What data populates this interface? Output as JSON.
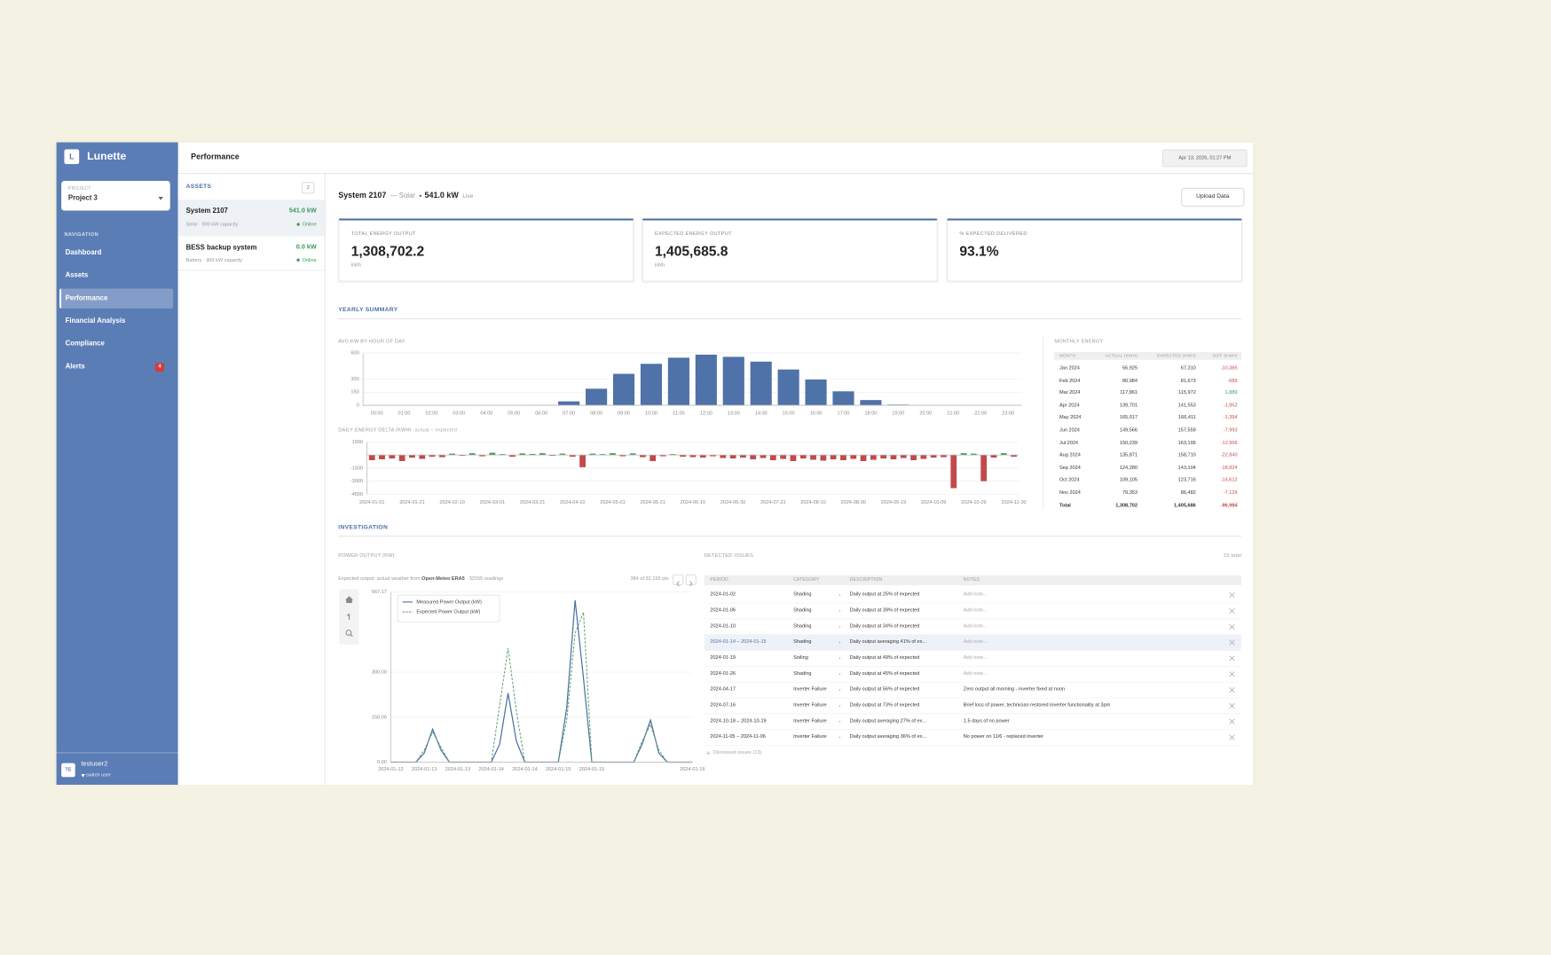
{
  "app": {
    "logo": "L",
    "name": "Lunette"
  },
  "sidebar": {
    "project_label": "PROJECT",
    "project": "Project 3",
    "nav_label": "NAVIGATION",
    "nav": [
      "Dashboard",
      "Assets",
      "Performance",
      "Financial Analysis",
      "Compliance",
      "Alerts"
    ],
    "alerts_badge": "4",
    "user_initials": "TE",
    "user": "testuser2",
    "switch_user": "switch user"
  },
  "header": {
    "title": "Performance",
    "timestamp": "Apr 13, 2026, 01:27 PM"
  },
  "assets": {
    "title": "ASSETS",
    "count": "2",
    "items": [
      {
        "name": "System 2107",
        "power": "541.0 kW",
        "detail": "Solar · 900 kW capacity",
        "status": "Online"
      },
      {
        "name": "BESS backup system",
        "power": "0.0 kW",
        "detail": "Battery · 900 kW capacity",
        "status": "Online"
      }
    ]
  },
  "system": {
    "name": "System 2107",
    "type": "— Solar",
    "power": "541.0 kW",
    "live": "Live",
    "upload": "Upload Data"
  },
  "kpis": [
    {
      "label": "TOTAL ENERGY OUTPUT",
      "value": "1,308,702.2",
      "unit": "kWh"
    },
    {
      "label": "EXPECTED ENERGY OUTPUT",
      "value": "1,405,685.8",
      "unit": "kWh"
    },
    {
      "label": "% EXPECTED DELIVERED",
      "value": "93.1%"
    }
  ],
  "sections": {
    "yearly": "YEARLY SUMMARY",
    "investigation": "INVESTIGATION"
  },
  "monthly": {
    "title": "MONTHLY ENERGY",
    "columns": [
      "MONTH",
      "ACTUAL (KWH)",
      "EXPECTED (KWH)",
      "DIFF (KWH)"
    ],
    "rows": [
      [
        "Jan 2024",
        "56,925",
        "67,310",
        "-10,385"
      ],
      [
        "Feb 2024",
        "80,984",
        "81,673",
        "-689"
      ],
      [
        "Mar 2024",
        "117,861",
        "115,972",
        "1,889"
      ],
      [
        "Apr 2024",
        "139,701",
        "141,553",
        "-1,852"
      ],
      [
        "May 2024",
        "165,017",
        "166,411",
        "-1,394"
      ],
      [
        "Jun 2024",
        "149,566",
        "157,559",
        "-7,993"
      ],
      [
        "Jul 2024",
        "150,239",
        "163,195",
        "-12,956"
      ],
      [
        "Aug 2024",
        "135,871",
        "158,710",
        "-22,840"
      ],
      [
        "Sep 2024",
        "124,280",
        "143,104",
        "-18,824"
      ],
      [
        "Oct 2024",
        "109,105",
        "123,716",
        "-14,612"
      ],
      [
        "Nov 2024",
        "79,353",
        "86,482",
        "-7,129"
      ],
      [
        "Total",
        "1,308,702",
        "1,405,686",
        "-96,984"
      ]
    ]
  },
  "power_panel": {
    "note": "Expected output: actual weather from",
    "source": "Open-Meteo ERA5",
    "readings": "· 32155 readings",
    "points": "384 of 32,155 pts"
  },
  "issues": {
    "title": "DETECTED ISSUES",
    "total": "23 total",
    "columns": [
      "PERIOD",
      "CATEGORY",
      "DESCRIPTION",
      "NOTES"
    ],
    "rows": [
      [
        "2024-01-02",
        "Shading",
        "Daily output at 25% of expected",
        "Add note..."
      ],
      [
        "2024-01-06",
        "Shading",
        "Daily output at 39% of expected",
        "Add note..."
      ],
      [
        "2024-01-10",
        "Shading",
        "Daily output at 34% of expected",
        "Add note..."
      ],
      [
        "2024-01-14 – 2024-01-15",
        "Shading",
        "Daily output averaging 41% of ex...",
        "Add note..."
      ],
      [
        "2024-01-19",
        "Soiling",
        "Daily output at 49% of expected",
        "Add note..."
      ],
      [
        "2024-01-26",
        "Shading",
        "Daily output at 45% of expected",
        "Add note..."
      ],
      [
        "2024-04-17",
        "Inverter Failure",
        "Daily output at 56% of expected",
        "Zero output all morning - inverter fixed at noon"
      ],
      [
        "2024-07-16",
        "Inverter Failure",
        "Daily output at 73% of expected",
        "Brief loss of power, technician restored inverter functionality at 3pm"
      ],
      [
        "2024-10-18 – 2024-10-19",
        "Inverter Failure",
        "Daily output averaging 27% of ex...",
        "1.5 days of no power"
      ],
      [
        "2024-11-05 – 2024-11-06",
        "Inverter Failure",
        "Daily output averaging 36% of ex...",
        "No power on 11/6 - replaced inverter"
      ]
    ],
    "dismissed": "Dismissed issues (13)"
  },
  "chart_data": [
    {
      "type": "bar",
      "title": "AVG KW BY HOUR OF DAY",
      "categories": [
        "00:00",
        "01:00",
        "02:00",
        "03:00",
        "04:00",
        "05:00",
        "06:00",
        "07:00",
        "08:00",
        "09:00",
        "10:00",
        "11:00",
        "12:00",
        "13:00",
        "14:00",
        "15:00",
        "16:00",
        "17:00",
        "18:00",
        "19:00",
        "20:00",
        "21:00",
        "22:00",
        "23:00"
      ],
      "values": [
        0,
        0,
        0,
        0,
        0,
        0,
        2,
        45,
        190,
        360,
        475,
        545,
        580,
        555,
        500,
        410,
        295,
        160,
        60,
        8,
        0,
        0,
        0,
        0
      ],
      "color": "#4f72a8",
      "ylim": [
        0,
        600
      ],
      "yticks": [
        0,
        150,
        300,
        600
      ],
      "grid": true
    },
    {
      "type": "bar",
      "title": "DAILY ENERGY DELTA (KWH)",
      "subtitle": "actual − expected",
      "categories": [
        "2024-01-01",
        null,
        null,
        null,
        "2024-01-21",
        null,
        null,
        null,
        "2024-02-10",
        null,
        null,
        null,
        "2024-03-01",
        null,
        null,
        null,
        "2024-03-21",
        null,
        null,
        null,
        "2024-04-10",
        null,
        null,
        null,
        "2024-05-01",
        null,
        null,
        null,
        "2024-05-21",
        null,
        null,
        null,
        "2024-06-10",
        null,
        null,
        null,
        "2024-06-30",
        null,
        null,
        null,
        "2024-07-21",
        null,
        null,
        null,
        "2024-08-10",
        null,
        null,
        null,
        "2024-08-30",
        null,
        null,
        null,
        "2024-09-19",
        null,
        null,
        null,
        "2024-10-09",
        null,
        null,
        null,
        "2024-10-29",
        null,
        null,
        null,
        "2024-11-30"
      ],
      "values": [
        -600,
        -500,
        -400,
        -700,
        -300,
        -450,
        -200,
        -250,
        150,
        -100,
        200,
        -150,
        250,
        100,
        -200,
        180,
        120,
        200,
        -100,
        150,
        -200,
        -1400,
        150,
        100,
        200,
        -150,
        180,
        -250,
        -700,
        -150,
        100,
        -200,
        -250,
        -300,
        -150,
        -350,
        -400,
        -300,
        -500,
        -350,
        -600,
        -450,
        -700,
        -400,
        -550,
        -650,
        -500,
        -600,
        -450,
        -700,
        -550,
        -400,
        -500,
        -350,
        -600,
        -450,
        -300,
        -250,
        -3800,
        200,
        150,
        -3000,
        -300,
        200,
        -200
      ],
      "positive_color": "#3f9a5a",
      "negative_color": "#c24a4a",
      "ylim": [
        -4500,
        1500
      ],
      "yticks": [
        1500,
        -1500,
        -3000,
        -4500
      ],
      "grid": true
    },
    {
      "type": "line",
      "title": "POWER OUTPUT (KW)",
      "categories": [
        "2024-01-12",
        null,
        null,
        null,
        "2024-01-13",
        null,
        null,
        null,
        "2024-01-13",
        null,
        null,
        null,
        "2024-01-14",
        null,
        null,
        null,
        "2024-01-14",
        null,
        null,
        null,
        "2024-01-15",
        null,
        null,
        null,
        "2024-01-15",
        null,
        null,
        null,
        null,
        null,
        null,
        null,
        null,
        null,
        null,
        null,
        "2024-01-16"
      ],
      "series": [
        {
          "name": "Measured Power Output (kW)",
          "color": "#4a6fa5",
          "values": [
            0,
            0,
            0,
            0,
            30,
            110,
            40,
            0,
            0,
            0,
            0,
            0,
            0,
            60,
            230,
            70,
            0,
            0,
            0,
            0,
            0,
            180,
            540,
            280,
            0,
            0,
            0,
            0,
            0,
            0,
            60,
            140,
            30,
            0,
            0,
            0,
            0
          ]
        },
        {
          "name": "Expected Power Output (kW)",
          "color": "#5f9e6e",
          "dashed": true,
          "values": [
            0,
            0,
            0,
            0,
            40,
            100,
            50,
            0,
            0,
            0,
            0,
            0,
            0,
            190,
            380,
            170,
            0,
            0,
            0,
            0,
            0,
            140,
            430,
            500,
            0,
            0,
            0,
            0,
            0,
            0,
            70,
            125,
            40,
            0,
            0,
            0,
            0
          ]
        }
      ],
      "ylim": [
        0,
        567.17
      ],
      "yticks": [
        {
          "value": 0,
          "label": "0.00"
        },
        {
          "value": 150,
          "label": "150.00"
        },
        {
          "value": 300,
          "label": "300.00"
        },
        {
          "value": 567.17,
          "label": "567.17"
        }
      ],
      "grid": true,
      "legend": "upper-left"
    }
  ]
}
